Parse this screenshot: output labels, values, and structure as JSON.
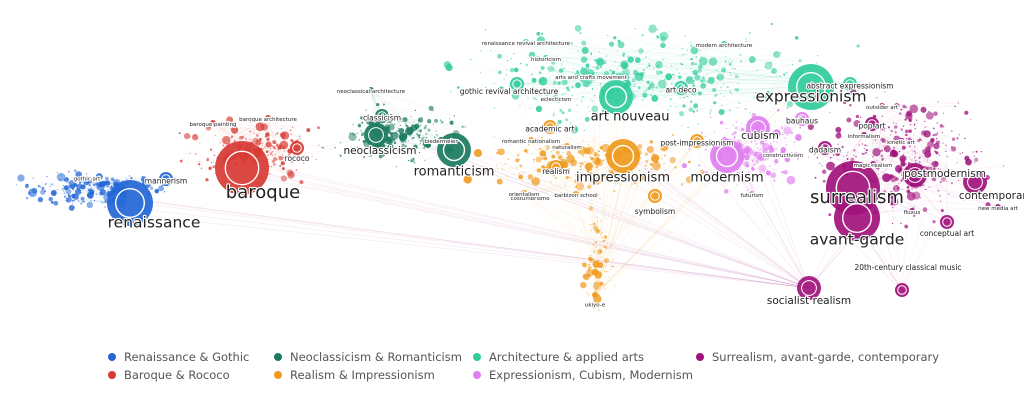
{
  "legend": [
    {
      "label": "Renaissance & Gothic",
      "color": "#2266d6"
    },
    {
      "label": "Baroque & Rococo",
      "color": "#d83a34"
    },
    {
      "label": "Neoclassicism & Romanticism",
      "color": "#1b7a5f"
    },
    {
      "label": "Realism & Impressionism",
      "color": "#ef9a1d"
    },
    {
      "label": "Architecture & applied arts",
      "color": "#30cc9c"
    },
    {
      "label": "Expressionism, Cubism, Modernism",
      "color": "#e07ff0"
    },
    {
      "label": "Surrealism, avant-garde, contemporary",
      "color": "#a1127c"
    }
  ],
  "nodes": [
    {
      "label": "renaissance",
      "group": 0,
      "importance": 5
    },
    {
      "label": "baroque",
      "group": 1,
      "importance": 6
    },
    {
      "label": "mannerism",
      "group": 0,
      "importance": 2
    },
    {
      "label": "gothic art",
      "group": 0,
      "importance": 1
    },
    {
      "label": "rococo",
      "group": 1,
      "importance": 2
    },
    {
      "label": "baroque painting",
      "group": 1,
      "importance": 1
    },
    {
      "label": "baroque architecture",
      "group": 1,
      "importance": 1
    },
    {
      "label": "neoclassicism",
      "group": 2,
      "importance": 3
    },
    {
      "label": "classicism",
      "group": 2,
      "importance": 2
    },
    {
      "label": "neoclassical architecture",
      "group": 2,
      "importance": 1
    },
    {
      "label": "romanticism",
      "group": 2,
      "importance": 4
    },
    {
      "label": "biedermeier",
      "group": 2,
      "importance": 1
    },
    {
      "label": "gothic revival architecture",
      "group": 4,
      "importance": 2
    },
    {
      "label": "renaissance revival architecture",
      "group": 4,
      "importance": 1
    },
    {
      "label": "historicism",
      "group": 4,
      "importance": 1
    },
    {
      "label": "arts and crafts movement",
      "group": 4,
      "importance": 1
    },
    {
      "label": "eclecticism",
      "group": 4,
      "importance": 1
    },
    {
      "label": "art nouveau",
      "group": 4,
      "importance": 4
    },
    {
      "label": "art deco",
      "group": 4,
      "importance": 2
    },
    {
      "label": "modern architecture",
      "group": 4,
      "importance": 1
    },
    {
      "label": "expressionism",
      "group": 4,
      "importance": 5
    },
    {
      "label": "abstract expressionism",
      "group": 4,
      "importance": 2
    },
    {
      "label": "academic art",
      "group": 3,
      "importance": 2
    },
    {
      "label": "romantic nationalism",
      "group": 3,
      "importance": 1
    },
    {
      "label": "realism",
      "group": 3,
      "importance": 2
    },
    {
      "label": "naturalism",
      "group": 3,
      "importance": 1
    },
    {
      "label": "impressionism",
      "group": 3,
      "importance": 4
    },
    {
      "label": "post-impressionism",
      "group": 3,
      "importance": 2
    },
    {
      "label": "costumbrismo",
      "group": 3,
      "importance": 1
    },
    {
      "label": "orientalism",
      "group": 3,
      "importance": 1
    },
    {
      "label": "barbizon school",
      "group": 3,
      "importance": 1
    },
    {
      "label": "symbolism",
      "group": 3,
      "importance": 2
    },
    {
      "label": "ukiyo-e",
      "group": 3,
      "importance": 1
    },
    {
      "label": "modernism",
      "group": 5,
      "importance": 4
    },
    {
      "label": "cubism",
      "group": 5,
      "importance": 3
    },
    {
      "label": "constructivism",
      "group": 5,
      "importance": 1
    },
    {
      "label": "futurism",
      "group": 5,
      "importance": 1
    },
    {
      "label": "bauhaus",
      "group": 5,
      "importance": 2
    },
    {
      "label": "dadaism",
      "group": 6,
      "importance": 2
    },
    {
      "label": "surrealism",
      "group": 6,
      "importance": 6
    },
    {
      "label": "avant-garde",
      "group": 6,
      "importance": 5
    },
    {
      "label": "socialist realism",
      "group": 6,
      "importance": 3
    },
    {
      "label": "magic realism",
      "group": 6,
      "importance": 1
    },
    {
      "label": "informalism",
      "group": 6,
      "importance": 1
    },
    {
      "label": "outsider art",
      "group": 6,
      "importance": 1
    },
    {
      "label": "pop art",
      "group": 6,
      "importance": 2
    },
    {
      "label": "kinetic art",
      "group": 6,
      "importance": 1
    },
    {
      "label": "postmodernism",
      "group": 6,
      "importance": 3
    },
    {
      "label": "contemporary art",
      "group": 6,
      "importance": 3
    },
    {
      "label": "fluxus",
      "group": 6,
      "importance": 1
    },
    {
      "label": "new media art",
      "group": 6,
      "importance": 1
    },
    {
      "label": "conceptual art",
      "group": 6,
      "importance": 2
    },
    {
      "label": "20th-century classical music",
      "group": 6,
      "importance": 2
    }
  ]
}
